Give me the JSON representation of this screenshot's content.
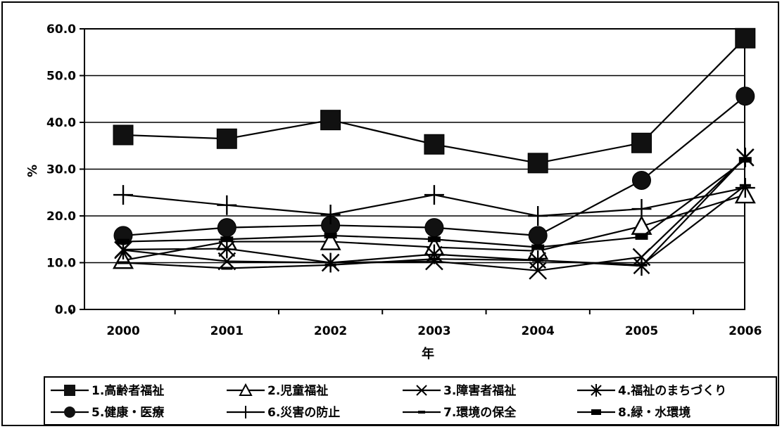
{
  "chart_data": {
    "type": "line",
    "title": "",
    "xlabel": "年",
    "ylabel": "%",
    "categories": [
      "2000",
      "2001",
      "2002",
      "2003",
      "2004",
      "2005",
      "2006"
    ],
    "y_ticks": [
      "0.0",
      "10.0",
      "20.0",
      "30.0",
      "40.0",
      "50.0",
      "60.0"
    ],
    "ylim": [
      0,
      60
    ],
    "grid": true,
    "legend_position": "bottom",
    "series": [
      {
        "name": "1.高齢者福祉",
        "marker": "square",
        "values": [
          37.3,
          36.5,
          40.5,
          35.3,
          31.3,
          35.6,
          58.0
        ]
      },
      {
        "name": "2.児童福祉",
        "marker": "triangle",
        "values": [
          10.5,
          14.5,
          14.5,
          13.3,
          12.5,
          17.8,
          24.5
        ]
      },
      {
        "name": "3.障害者福祉",
        "marker": "x",
        "values": [
          12.7,
          10.3,
          10.0,
          10.3,
          8.3,
          11.2,
          32.5
        ]
      },
      {
        "name": "4.福祉のまちづくり",
        "marker": "asterisk",
        "values": [
          12.8,
          13.0,
          10.0,
          11.8,
          10.5,
          9.3,
          32.5
        ]
      },
      {
        "name": "5.健康・医療",
        "marker": "circle",
        "values": [
          15.8,
          17.5,
          18.0,
          17.5,
          15.8,
          27.6,
          45.6
        ]
      },
      {
        "name": "6.災害の防止",
        "marker": "plus",
        "values": [
          24.5,
          22.3,
          20.3,
          24.5,
          20.0,
          21.5,
          26.0
        ]
      },
      {
        "name": "7.環境の保全",
        "marker": "dash",
        "values": [
          10.0,
          8.8,
          9.5,
          10.8,
          10.5,
          9.5,
          26.5
        ]
      },
      {
        "name": "8.緑・水環境",
        "marker": "bar",
        "values": [
          14.5,
          15.0,
          15.8,
          15.0,
          13.3,
          15.5,
          32.0
        ]
      }
    ]
  }
}
